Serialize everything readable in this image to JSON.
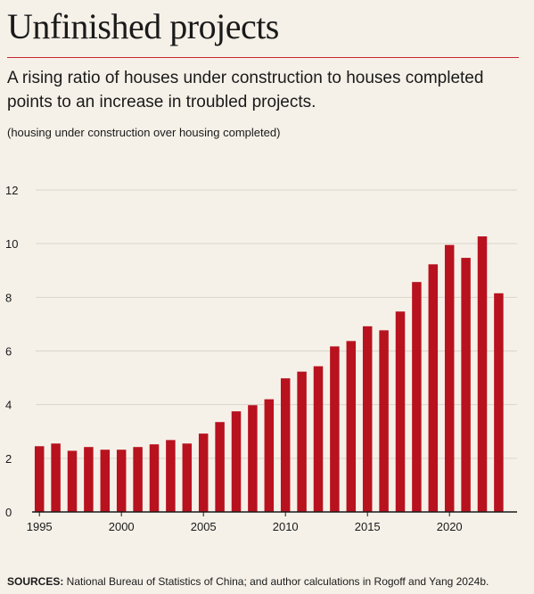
{
  "header": {
    "title": "Unfinished projects",
    "subtitle": "A rising ratio of houses under construction to houses completed points to an increase in troubled projects.",
    "unit_note": "(housing under construction over housing completed)"
  },
  "source": {
    "label": "SOURCES:",
    "text": " National Bureau of Statistics of China; and author calculations in Rogoff and Yang 2024b."
  },
  "colors": {
    "bar": "#b8121f",
    "accent_rule": "#c8262f",
    "grid": "#d9d5cc",
    "background": "#f5f1e8"
  },
  "chart_data": {
    "type": "bar",
    "title": "",
    "xlabel": "",
    "ylabel": "",
    "ylim": [
      0,
      12
    ],
    "yticks": [
      0,
      2,
      4,
      6,
      8,
      10,
      12
    ],
    "xticks": [
      1995,
      2000,
      2005,
      2010,
      2015,
      2020
    ],
    "grid": true,
    "categories": [
      1995,
      1996,
      1997,
      1998,
      1999,
      2000,
      2001,
      2002,
      2003,
      2004,
      2005,
      2006,
      2007,
      2008,
      2009,
      2010,
      2011,
      2012,
      2013,
      2014,
      2015,
      2016,
      2017,
      2018,
      2019,
      2020,
      2021,
      2022,
      2023
    ],
    "values": [
      2.45,
      2.55,
      2.28,
      2.42,
      2.32,
      2.32,
      2.42,
      2.52,
      2.68,
      2.55,
      2.92,
      3.35,
      3.75,
      3.98,
      4.2,
      4.98,
      5.23,
      5.43,
      6.17,
      6.37,
      6.92,
      6.77,
      7.47,
      8.57,
      9.23,
      9.95,
      9.47,
      10.27,
      8.15
    ]
  }
}
